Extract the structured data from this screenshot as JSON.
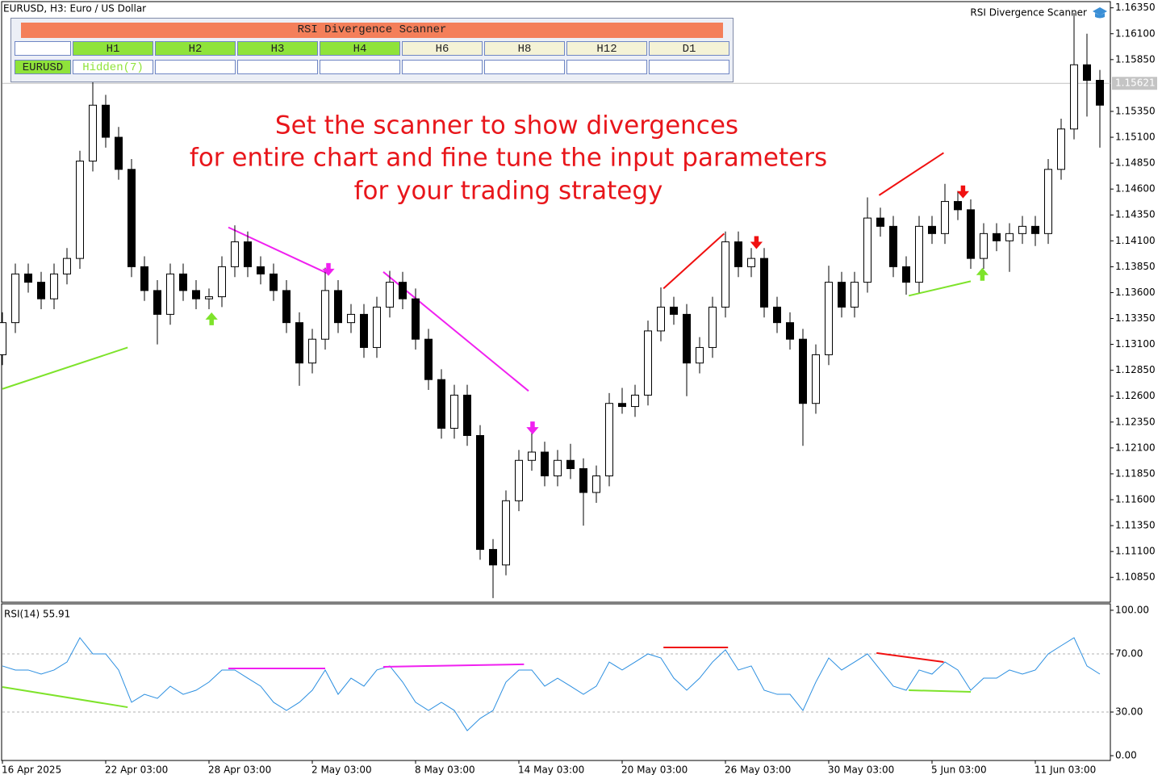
{
  "header": "EURUSD, H3:  Euro / US Dollar",
  "indicator_name": "RSI Divergence Scanner",
  "scanner": {
    "title": "RSI Divergence Scanner",
    "timeframes": [
      {
        "label": "H1",
        "color": "#8fe33a"
      },
      {
        "label": "H2",
        "color": "#8fe33a"
      },
      {
        "label": "H3",
        "color": "#8fe33a"
      },
      {
        "label": "H4",
        "color": "#8fe33a"
      },
      {
        "label": "H6",
        "color": "#f4f2d6"
      },
      {
        "label": "H8",
        "color": "#f4f2d6"
      },
      {
        "label": "H12",
        "color": "#f4f2d6"
      },
      {
        "label": "D1",
        "color": "#f4f2d6"
      }
    ],
    "rows": [
      {
        "symbol": "EURUSD",
        "symbol_color": "#8fe33a",
        "cells": [
          "Hidden(7)",
          null,
          null,
          null,
          null,
          null,
          null,
          null
        ],
        "cell_text_color": "#8fe33a"
      }
    ]
  },
  "chart_data": [
    {
      "type": "candlestick",
      "annotation": [
        "Set the scanner to show divergences",
        "for entire chart and fine tune the input parameters",
        "for your trading strategy"
      ],
      "categories": [
        "16 Apr 2025",
        null,
        null,
        null,
        null,
        null,
        null,
        null,
        "22 Apr 03:00",
        null,
        null,
        null,
        null,
        null,
        null,
        null,
        "28 Apr 03:00",
        null,
        null,
        null,
        null,
        null,
        null,
        null,
        "2 May 03:00",
        null,
        null,
        null,
        null,
        null,
        null,
        null,
        "8 May 03:00",
        null,
        null,
        null,
        null,
        null,
        null,
        null,
        "14 May 03:00",
        null,
        null,
        null,
        null,
        null,
        null,
        null,
        "20 May 03:00",
        null,
        null,
        null,
        null,
        null,
        null,
        null,
        "26 May 03:00",
        null,
        null,
        null,
        null,
        null,
        null,
        null,
        "30 May 03:00",
        null,
        null,
        null,
        null,
        null,
        null,
        null,
        "5 Jun 03:00",
        null,
        null,
        null,
        null,
        null,
        null,
        null,
        "11 Jun 03:00",
        null,
        null,
        null,
        null,
        null
      ],
      "open": [
        1.13,
        1.1331,
        1.1378,
        1.137,
        1.1354,
        1.1378,
        1.1393,
        1.1487,
        1.1541,
        1.151,
        1.1479,
        1.1385,
        1.1362,
        1.1339,
        1.1378,
        1.1362,
        1.1354,
        1.1356,
        1.1385,
        1.1409,
        1.1385,
        1.1378,
        1.1362,
        1.1331,
        1.1292,
        1.1315,
        1.1362,
        1.1331,
        1.1339,
        1.1307,
        1.1346,
        1.137,
        1.1354,
        1.1315,
        1.1276,
        1.1229,
        1.1261,
        1.1222,
        1.1112,
        1.1097,
        1.1159,
        1.1198,
        1.1206,
        1.1183,
        1.1198,
        1.119,
        1.1167,
        1.1183,
        1.1253,
        1.125,
        1.1261,
        1.1323,
        1.1346,
        1.1339,
        1.1292,
        1.1307,
        1.1346,
        1.1409,
        1.1385,
        1.1393,
        1.1346,
        1.1331,
        1.1315,
        1.1253,
        1.13,
        1.137,
        1.1346,
        1.137,
        1.1432,
        1.1424,
        1.1385,
        1.137,
        1.1424,
        1.1417,
        1.1448,
        1.144,
        1.1393,
        1.1417,
        1.141,
        1.1417,
        1.1424,
        1.1417,
        1.1479,
        1.1518,
        1.158,
        1.1565
      ],
      "high": [
        1.1341,
        1.1388,
        1.1388,
        1.138,
        1.1388,
        1.1403,
        1.1497,
        1.157,
        1.1551,
        1.152,
        1.1489,
        1.1395,
        1.1372,
        1.1388,
        1.1388,
        1.1372,
        1.1364,
        1.1395,
        1.1425,
        1.1419,
        1.1395,
        1.1388,
        1.1372,
        1.1341,
        1.1325,
        1.1384,
        1.1372,
        1.1349,
        1.1349,
        1.1356,
        1.1381,
        1.138,
        1.1364,
        1.1325,
        1.1286,
        1.1271,
        1.1271,
        1.1232,
        1.1122,
        1.1169,
        1.1208,
        1.123,
        1.1216,
        1.1208,
        1.1214,
        1.12,
        1.1193,
        1.1263,
        1.1268,
        1.1271,
        1.1333,
        1.1365,
        1.1356,
        1.1349,
        1.1317,
        1.1356,
        1.1419,
        1.1419,
        1.1403,
        1.1403,
        1.1356,
        1.1341,
        1.1325,
        1.131,
        1.1386,
        1.138,
        1.138,
        1.1452,
        1.1442,
        1.1434,
        1.1395,
        1.1434,
        1.1434,
        1.1465,
        1.1458,
        1.145,
        1.1427,
        1.1427,
        1.1427,
        1.1434,
        1.1434,
        1.1489,
        1.1528,
        1.163,
        1.161,
        1.1575
      ],
      "low": [
        1.129,
        1.1321,
        1.136,
        1.1344,
        1.1344,
        1.1368,
        1.1383,
        1.1477,
        1.15,
        1.1469,
        1.1375,
        1.1352,
        1.131,
        1.1329,
        1.1352,
        1.1344,
        1.1344,
        1.1346,
        1.1375,
        1.1375,
        1.1368,
        1.1352,
        1.1321,
        1.127,
        1.1282,
        1.1305,
        1.1321,
        1.1321,
        1.1297,
        1.1297,
        1.1336,
        1.1344,
        1.1305,
        1.1266,
        1.1219,
        1.1219,
        1.1212,
        1.1102,
        1.1065,
        1.1087,
        1.1149,
        1.1188,
        1.1173,
        1.1173,
        1.118,
        1.1135,
        1.1157,
        1.1173,
        1.1243,
        1.124,
        1.1251,
        1.1313,
        1.1329,
        1.126,
        1.1282,
        1.1297,
        1.1336,
        1.1375,
        1.1375,
        1.1336,
        1.1321,
        1.1305,
        1.1212,
        1.1243,
        1.129,
        1.1336,
        1.1336,
        1.136,
        1.1414,
        1.1375,
        1.1358,
        1.136,
        1.1407,
        1.1407,
        1.143,
        1.1383,
        1.1383,
        1.14,
        1.138,
        1.1407,
        1.1405,
        1.1407,
        1.1469,
        1.1508,
        1.153,
        1.15
      ],
      "close": [
        1.1331,
        1.1378,
        1.137,
        1.1354,
        1.1378,
        1.1393,
        1.1487,
        1.1541,
        1.151,
        1.1479,
        1.1385,
        1.1362,
        1.1339,
        1.1378,
        1.1362,
        1.1354,
        1.1356,
        1.1385,
        1.1409,
        1.1385,
        1.1378,
        1.1362,
        1.1331,
        1.1292,
        1.1315,
        1.1362,
        1.1331,
        1.1339,
        1.1307,
        1.1346,
        1.137,
        1.1354,
        1.1315,
        1.1276,
        1.1229,
        1.1261,
        1.1222,
        1.1112,
        1.1097,
        1.1159,
        1.1198,
        1.1206,
        1.1183,
        1.1198,
        1.119,
        1.1167,
        1.1183,
        1.1253,
        1.125,
        1.1261,
        1.1323,
        1.1346,
        1.1339,
        1.1292,
        1.1307,
        1.1346,
        1.1409,
        1.1385,
        1.1393,
        1.1346,
        1.1331,
        1.1315,
        1.1253,
        1.13,
        1.137,
        1.1346,
        1.137,
        1.1432,
        1.1424,
        1.1385,
        1.137,
        1.1424,
        1.1417,
        1.1448,
        1.144,
        1.1393,
        1.1417,
        1.141,
        1.1417,
        1.1424,
        1.1417,
        1.1479,
        1.1518,
        1.158,
        1.1565,
        1.1541
      ],
      "bull_color": "#ffffff",
      "bear_color": "#000000",
      "outline_color": "#000000",
      "ylim": [
        1.1061,
        1.1641
      ],
      "yticks": [
        {
          "value": 1.1635,
          "label": "1.16350"
        },
        {
          "value": 1.161,
          "label": "1.16100"
        },
        {
          "value": 1.1585,
          "label": "1.15850"
        },
        {
          "value": 1.1535,
          "label": "1.15350"
        },
        {
          "value": 1.151,
          "label": "1.15100"
        },
        {
          "value": 1.1485,
          "label": "1.14850"
        },
        {
          "value": 1.146,
          "label": "1.14600"
        },
        {
          "value": 1.1435,
          "label": "1.14350"
        },
        {
          "value": 1.141,
          "label": "1.14100"
        },
        {
          "value": 1.1385,
          "label": "1.13850"
        },
        {
          "value": 1.136,
          "label": "1.13600"
        },
        {
          "value": 1.1335,
          "label": "1.13350"
        },
        {
          "value": 1.131,
          "label": "1.13100"
        },
        {
          "value": 1.1285,
          "label": "1.12850"
        },
        {
          "value": 1.126,
          "label": "1.12600"
        },
        {
          "value": 1.1235,
          "label": "1.12350"
        },
        {
          "value": 1.121,
          "label": "1.12100"
        },
        {
          "value": 1.1185,
          "label": "1.11850"
        },
        {
          "value": 1.116,
          "label": "1.11600"
        },
        {
          "value": 1.1135,
          "label": "1.11350"
        },
        {
          "value": 1.111,
          "label": "1.11100"
        },
        {
          "value": 1.1085,
          "label": "1.10850"
        }
      ],
      "current_price": 1.15621,
      "divergence_lines": [
        {
          "color": "#7ee32b",
          "x": [
            0,
            9.7
          ],
          "y": [
            1.1267,
            1.1307
          ]
        },
        {
          "color": "#f020f0",
          "x": [
            17.5,
            25.1
          ],
          "y": [
            1.1423,
            1.1379
          ]
        },
        {
          "color": "#f020f0",
          "x": [
            29.5,
            40.75
          ],
          "y": [
            1.138,
            1.1265
          ]
        },
        {
          "color": "#f01010",
          "x": [
            51.2,
            55.9
          ],
          "y": [
            1.1364,
            1.1417
          ]
        },
        {
          "color": "#f01010",
          "x": [
            67.9,
            72.9
          ],
          "y": [
            1.1454,
            1.1495
          ]
        },
        {
          "color": "#7ee32b",
          "x": [
            70.2,
            75
          ],
          "y": [
            1.1357,
            1.1371
          ]
        }
      ],
      "arrows": [
        {
          "direction": "up",
          "color": "#7ee32b",
          "x": 16.2,
          "y": 1.134
        },
        {
          "direction": "down",
          "color": "#f020f0",
          "x": 25.25,
          "y": 1.1377
        },
        {
          "direction": "down",
          "color": "#f020f0",
          "x": 41.06,
          "y": 1.1224
        },
        {
          "direction": "down",
          "color": "#f01010",
          "x": 58.4,
          "y": 1.1403
        },
        {
          "direction": "down",
          "color": "#f01010",
          "x": 74.4,
          "y": 1.1452
        },
        {
          "direction": "up",
          "color": "#7ee32b",
          "x": 75.9,
          "y": 1.1383
        }
      ]
    },
    {
      "type": "line",
      "title": "RSI(14) 55.91",
      "color": "#2a8ee0",
      "values": [
        61.7,
        58.9,
        58.9,
        56.1,
        58.9,
        64.4,
        81.1,
        70.0,
        70.0,
        58.9,
        36.7,
        42.2,
        39.4,
        47.8,
        42.2,
        45.0,
        50.6,
        58.9,
        58.9,
        53.3,
        47.8,
        36.7,
        31.1,
        36.7,
        45.0,
        58.9,
        42.2,
        53.3,
        47.8,
        58.9,
        61.7,
        50.6,
        36.7,
        31.1,
        36.7,
        31.1,
        17.2,
        25.6,
        31.1,
        50.6,
        58.9,
        58.9,
        47.8,
        53.3,
        47.8,
        42.2,
        47.8,
        64.4,
        58.9,
        64.4,
        70.0,
        67.2,
        53.3,
        45.0,
        53.3,
        64.4,
        72.8,
        58.9,
        61.7,
        45.0,
        42.2,
        42.2,
        31.1,
        50.6,
        67.2,
        58.9,
        64.4,
        70.0,
        58.9,
        47.8,
        45.0,
        58.9,
        56.1,
        64.4,
        58.9,
        45.0,
        53.3,
        53.3,
        58.9,
        56.1,
        58.9,
        70.0,
        75.6,
        81.1,
        61.7,
        56.1
      ],
      "ylim": [
        -3.3,
        104.4
      ],
      "yticks": [
        {
          "value": 0,
          "label": "0.00"
        },
        {
          "value": 30,
          "label": "30.00"
        },
        {
          "value": 70,
          "label": "70.00"
        },
        {
          "value": 100,
          "label": "100.00"
        }
      ],
      "divergence_lines": [
        {
          "color": "#7ee32b",
          "x": [
            0,
            9.7
          ],
          "y": [
            47.2,
            33.3
          ]
        },
        {
          "color": "#f020f0",
          "x": [
            17.5,
            25
          ],
          "y": [
            60,
            60
          ]
        },
        {
          "color": "#f020f0",
          "x": [
            29.5,
            40.4
          ],
          "y": [
            61.1,
            62.8
          ]
        },
        {
          "color": "#f01010",
          "x": [
            51.2,
            56.2
          ],
          "y": [
            74.4,
            74.4
          ]
        },
        {
          "color": "#f01010",
          "x": [
            67.7,
            72.9
          ],
          "y": [
            70.6,
            64.4
          ]
        },
        {
          "color": "#7ee32b",
          "x": [
            70.2,
            75
          ],
          "y": [
            45,
            43.9
          ]
        }
      ]
    }
  ]
}
